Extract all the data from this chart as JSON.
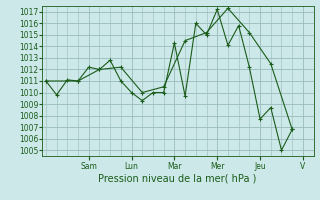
{
  "xlabel": "Pression niveau de la mer( hPa )",
  "bg_color": "#cce8e8",
  "grid_color": "#99bbbb",
  "line_color": "#1a5c1a",
  "ylim": [
    1004.5,
    1017.5
  ],
  "yticks": [
    1005,
    1006,
    1007,
    1008,
    1009,
    1010,
    1011,
    1012,
    1013,
    1014,
    1015,
    1016,
    1017
  ],
  "day_labels": [
    "Sam",
    "Lun",
    "Mar",
    "Mer",
    "Jeu",
    "V"
  ],
  "day_positions": [
    2.0,
    4.0,
    6.0,
    8.0,
    10.0,
    12.0
  ],
  "xlim": [
    -0.2,
    12.5
  ],
  "line1_x": [
    0,
    0.5,
    1.0,
    1.5,
    2.0,
    2.5,
    3.0,
    3.5,
    4.0,
    4.5,
    5.0,
    5.5,
    6.0,
    6.5,
    7.0,
    7.5,
    8.0,
    8.5,
    9.0,
    9.5,
    10.0,
    10.5,
    11.0,
    11.5
  ],
  "line1_y": [
    1011.0,
    1009.8,
    1011.1,
    1011.0,
    1012.2,
    1012.0,
    1012.8,
    1011.0,
    1010.0,
    1009.3,
    1010.0,
    1010.0,
    1014.3,
    1009.7,
    1016.0,
    1015.0,
    1017.2,
    1014.1,
    1015.8,
    1012.2,
    1007.7,
    1008.7,
    1005.0,
    1006.8
  ],
  "line2_x": [
    0,
    1.5,
    2.5,
    3.5,
    4.5,
    5.5,
    6.5,
    7.5,
    8.5,
    9.5,
    10.5,
    11.5
  ],
  "line2_y": [
    1011.0,
    1011.0,
    1012.0,
    1012.2,
    1010.0,
    1010.5,
    1014.5,
    1015.2,
    1017.3,
    1015.2,
    1012.5,
    1006.8
  ],
  "xlabel_fontsize": 7,
  "tick_fontsize": 5.5
}
